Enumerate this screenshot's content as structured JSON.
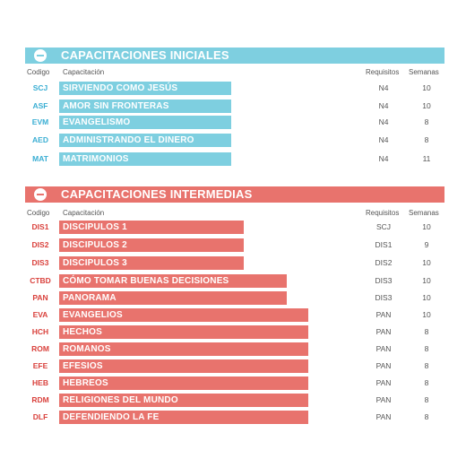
{
  "colors": {
    "iniciales": "#7ecfe0",
    "intermedias": "#e8736d"
  },
  "iniciales": {
    "title": "CAPACITACIONES INICIALES",
    "icon": "minus-circle-icon",
    "headers": {
      "codigo": "Codigo",
      "capacitacion": "Capacitación",
      "requisitos": "Requisitos",
      "semanas": "Semanas"
    },
    "rows": [
      {
        "code": "SCJ",
        "name": "SIRVIENDO COMO JESÚS",
        "req": "N4",
        "weeks": "10"
      },
      {
        "code": "ASF",
        "name": "AMOR SIN FRONTERAS",
        "req": "N4",
        "weeks": "10"
      },
      {
        "code": "EVM",
        "name": "EVANGELISMO",
        "req": "N4",
        "weeks": "8"
      },
      {
        "code": "AED",
        "name": "ADMINISTRANDO EL DINERO",
        "req": "N4",
        "weeks": "8"
      },
      {
        "code": "MAT",
        "name": "MATRIMONIOS",
        "req": "N4",
        "weeks": "11"
      }
    ]
  },
  "intermedias": {
    "title": "CAPACITACIONES INTERMEDIAS",
    "icon": "minus-circle-icon",
    "headers": {
      "codigo": "Codigo",
      "capacitacion": "Capacitación",
      "requisitos": "Requisitos",
      "semanas": "Semanas"
    },
    "rows": [
      {
        "code": "DIS1",
        "name": "DISCIPULOS 1",
        "req": "SCJ",
        "weeks": "10"
      },
      {
        "code": "DIS2",
        "name": "DISCIPULOS 2",
        "req": "DIS1",
        "weeks": "9"
      },
      {
        "code": "DIS3",
        "name": "DISCIPULOS 3",
        "req": "DIS2",
        "weeks": "10"
      },
      {
        "code": "CTBD",
        "name": "CÓMO TOMAR BUENAS DECISIONES",
        "req": "DIS3",
        "weeks": "10"
      },
      {
        "code": "PAN",
        "name": "PANORAMA",
        "req": "DIS3",
        "weeks": "10"
      },
      {
        "code": "EVA",
        "name": "EVANGELIOS",
        "req": "PAN",
        "weeks": "10"
      },
      {
        "code": "HCH",
        "name": "HECHOS",
        "req": "PAN",
        "weeks": "8"
      },
      {
        "code": "ROM",
        "name": "ROMANOS",
        "req": "PAN",
        "weeks": "8"
      },
      {
        "code": "EFE",
        "name": "EFESIOS",
        "req": "PAN",
        "weeks": "8"
      },
      {
        "code": "HEB",
        "name": "HEBREOS",
        "req": "PAN",
        "weeks": "8"
      },
      {
        "code": "RDM",
        "name": "RELIGIONES DEL MUNDO",
        "req": "PAN",
        "weeks": "8"
      },
      {
        "code": "DLF",
        "name": "DEFENDIENDO LA FE",
        "req": "PAN",
        "weeks": "8"
      }
    ]
  }
}
